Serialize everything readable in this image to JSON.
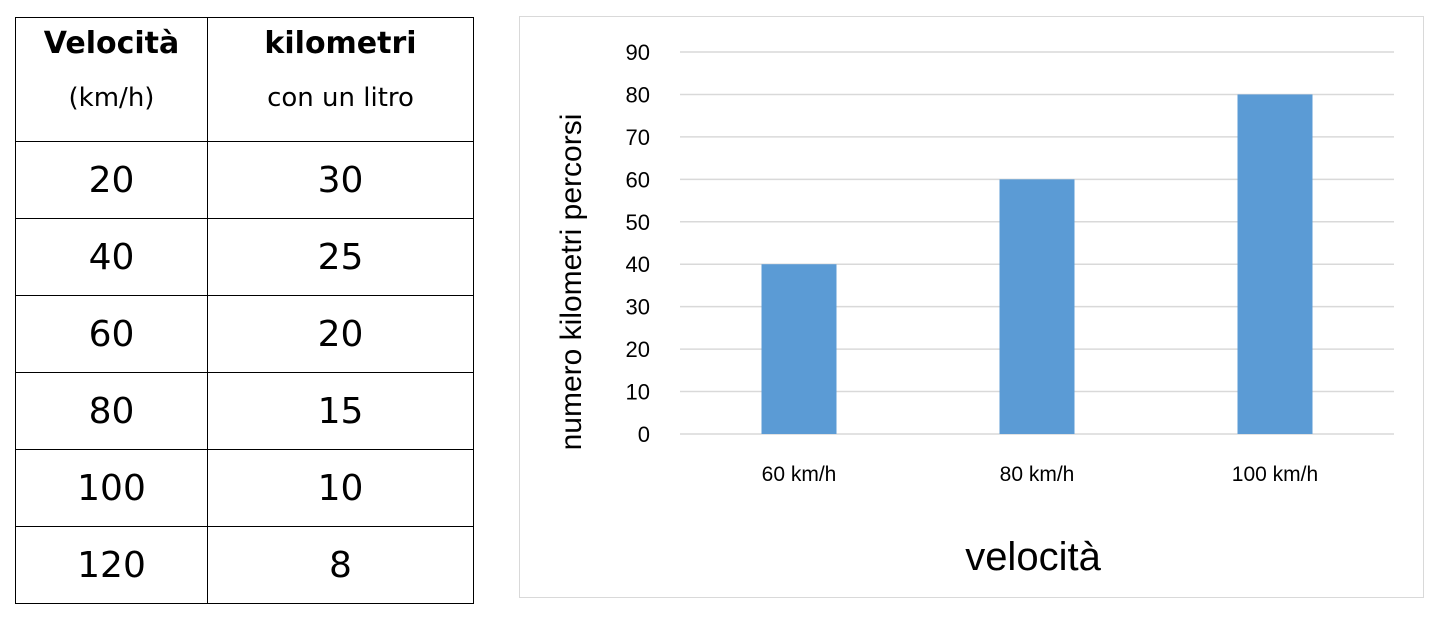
{
  "table": {
    "headers": [
      {
        "main": "Velocità",
        "sub": "(km/h)"
      },
      {
        "main": "kilometri",
        "sub": "con un litro"
      }
    ],
    "rows": [
      [
        "20",
        "30"
      ],
      [
        "40",
        "25"
      ],
      [
        "60",
        "20"
      ],
      [
        "80",
        "15"
      ],
      [
        "100",
        "10"
      ],
      [
        "120",
        "8"
      ]
    ]
  },
  "chart_data": {
    "type": "bar",
    "categories": [
      "60 km/h",
      "80 km/h",
      "100 km/h"
    ],
    "values": [
      40,
      60,
      80
    ],
    "title": "",
    "xlabel": "velocità",
    "ylabel": "numero kilometri percorsi",
    "ylim": [
      0,
      90
    ],
    "yticks": [
      0,
      10,
      20,
      30,
      40,
      50,
      60,
      70,
      80,
      90
    ],
    "grid": true,
    "bar_color": "#5b9bd5",
    "grid_color": "#d9d9d9"
  }
}
